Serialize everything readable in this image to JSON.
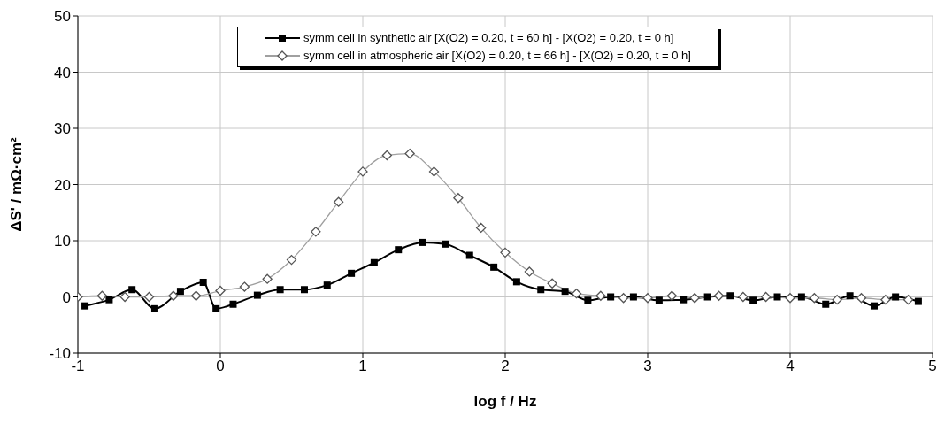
{
  "chart_data": {
    "type": "line",
    "xlabel": "log f / Hz",
    "ylabel": "ΔS' / mΩ·cm²",
    "xlim": [
      -1,
      5
    ],
    "xticks": [
      -1,
      0,
      1,
      2,
      3,
      4,
      5
    ],
    "ylim": [
      -10,
      50
    ],
    "yticks": [
      -10,
      0,
      10,
      20,
      30,
      40,
      50
    ],
    "grid": true,
    "legend": "top",
    "line_style": "solid",
    "series": [
      {
        "name": "symm cell in synthetic air  [X(O2) = 0.20, t = 60 h] -  [X(O2) = 0.20, t = 0 h]",
        "color": "#000000",
        "marker": "square",
        "x": [
          -0.95,
          -0.78,
          -0.62,
          -0.46,
          -0.28,
          -0.12,
          -0.03,
          0.09,
          0.26,
          0.42,
          0.59,
          0.75,
          0.92,
          1.08,
          1.25,
          1.42,
          1.58,
          1.75,
          1.92,
          2.08,
          2.25,
          2.42,
          2.58,
          2.74,
          2.9,
          3.08,
          3.25,
          3.42,
          3.58,
          3.74,
          3.91,
          4.08,
          4.25,
          4.42,
          4.59,
          4.74,
          4.9
        ],
        "values": [
          -1.6,
          -0.5,
          1.3,
          -2.1,
          1.0,
          2.6,
          -2.1,
          -1.3,
          0.3,
          1.3,
          1.3,
          2.1,
          4.2,
          6.1,
          8.4,
          9.7,
          9.4,
          7.4,
          5.3,
          2.7,
          1.3,
          1.0,
          -0.6,
          0,
          0,
          -0.6,
          -0.5,
          0,
          0.2,
          -0.6,
          0,
          0,
          -1.3,
          0.2,
          -1.6,
          0,
          -0.8
        ]
      },
      {
        "name": "symm cell in atmospheric air  [X(O2) = 0.20, t = 66 h] -  [X(O2) = 0.20, t = 0 h]",
        "color": "#a0a0a0",
        "marker": "diamond",
        "x": [
          -1,
          -0.83,
          -0.67,
          -0.5,
          -0.33,
          -0.17,
          0,
          0.17,
          0.33,
          0.5,
          0.67,
          0.83,
          1,
          1.17,
          1.33,
          1.5,
          1.67,
          1.83,
          2,
          2.17,
          2.33,
          2.5,
          2.67,
          2.83,
          3,
          3.17,
          3.33,
          3.5,
          3.67,
          3.83,
          4,
          4.17,
          4.33,
          4.5,
          4.67,
          4.83
        ],
        "values": [
          0,
          0.2,
          0,
          0,
          0.2,
          0.2,
          1.1,
          1.8,
          3.2,
          6.6,
          11.6,
          16.9,
          22.3,
          25.2,
          25.5,
          22.3,
          17.6,
          12.3,
          7.9,
          4.5,
          2.4,
          0.6,
          0.2,
          -0.2,
          -0.2,
          0.2,
          -0.2,
          0.2,
          0,
          0,
          -0.2,
          -0.2,
          -0.5,
          -0.2,
          -0.5,
          -0.5
        ]
      }
    ]
  }
}
